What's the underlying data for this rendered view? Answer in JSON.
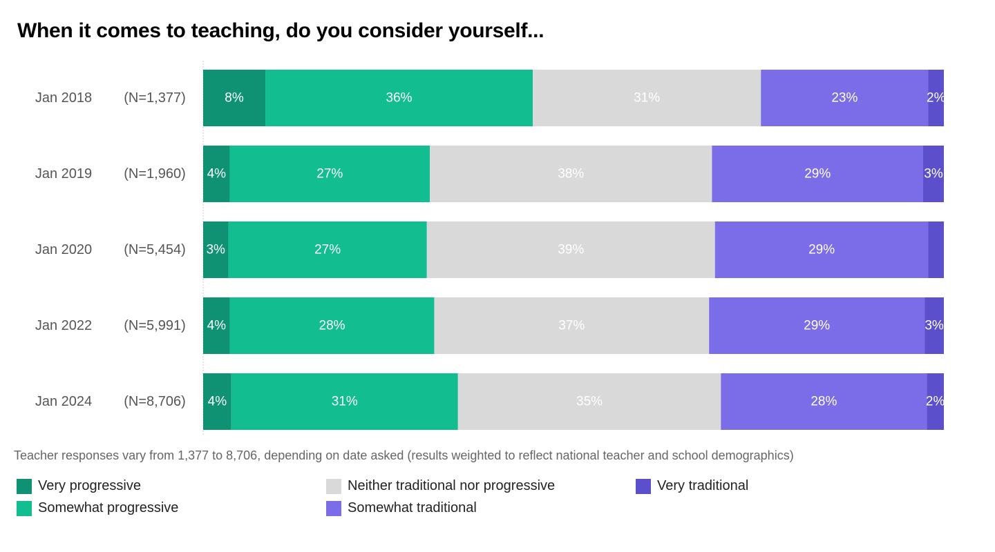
{
  "chart_data": {
    "type": "bar",
    "orientation": "horizontal",
    "stacked": true,
    "title": "When it comes to teaching, do you consider yourself...",
    "categories": [
      "Jan 2018",
      "Jan 2019",
      "Jan 2020",
      "Jan 2022",
      "Jan 2024"
    ],
    "sample_sizes": [
      "(N=1,377)",
      "(N=1,960)",
      "(N=5,454)",
      "(N=5,991)",
      "(N=8,706)"
    ],
    "series": [
      {
        "name": "Very progressive",
        "color": "#0f9274",
        "label_color": "#ffffff",
        "values": [
          8.4,
          3.6,
          3.4,
          3.6,
          3.8
        ],
        "labels": [
          "8%",
          "4%",
          "3%",
          "4%",
          "4%"
        ]
      },
      {
        "name": "Somewhat progressive",
        "color": "#12bd8f",
        "label_color": "#ffffff",
        "values": [
          36.1,
          27.0,
          26.8,
          27.6,
          30.6
        ],
        "labels": [
          "36%",
          "27%",
          "27%",
          "28%",
          "31%"
        ]
      },
      {
        "name": "Neither traditional nor progressive",
        "color": "#d9d9d9",
        "label_color": "#ffffff",
        "values": [
          30.8,
          38.1,
          38.9,
          37.1,
          35.5
        ],
        "labels": [
          "31%",
          "38%",
          "39%",
          "37%",
          "35%"
        ]
      },
      {
        "name": "Somewhat traditional",
        "color": "#7b6ce8",
        "label_color": "#ffffff",
        "values": [
          22.6,
          28.5,
          28.8,
          29.1,
          27.8
        ],
        "labels": [
          "23%",
          "29%",
          "29%",
          "29%",
          "28%"
        ]
      },
      {
        "name": "Very traditional",
        "color": "#5b4fcc",
        "label_color": "#ffffff",
        "values": [
          2.1,
          2.8,
          2.1,
          2.6,
          2.3
        ],
        "labels": [
          "2%",
          "3%",
          "",
          "3%",
          "2%"
        ]
      }
    ],
    "xlim": [
      0,
      100
    ],
    "legend_position": "bottom",
    "footnote": "Teacher responses vary from 1,377 to 8,706, depending on date asked (results weighted to reflect national teacher and school demographics)"
  }
}
